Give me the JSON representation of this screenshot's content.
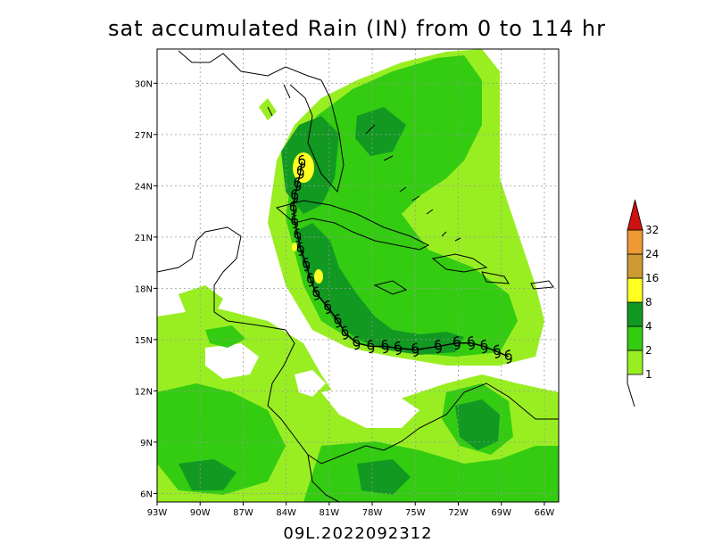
{
  "title": "sat accumulated Rain (IN) from 0 to 114 hr",
  "footer": "09L.2022092312",
  "map": {
    "lon_range": [
      -93,
      -65
    ],
    "lat_range": [
      5.5,
      32
    ],
    "lat_ticks": [
      {
        "value": 30,
        "label": "30N"
      },
      {
        "value": 27,
        "label": "27N"
      },
      {
        "value": 24,
        "label": "24N"
      },
      {
        "value": 21,
        "label": "21N"
      },
      {
        "value": 18,
        "label": "18N"
      },
      {
        "value": 15,
        "label": "15N"
      },
      {
        "value": 12,
        "label": "12N"
      },
      {
        "value": 9,
        "label": "9N"
      },
      {
        "value": 6,
        "label": "6N"
      }
    ],
    "lon_ticks": [
      {
        "value": -93,
        "label": "93W"
      },
      {
        "value": -90,
        "label": "90W"
      },
      {
        "value": -87,
        "label": "87W"
      },
      {
        "value": -84,
        "label": "84W"
      },
      {
        "value": -81,
        "label": "81W"
      },
      {
        "value": -78,
        "label": "78W"
      },
      {
        "value": -75,
        "label": "75W"
      },
      {
        "value": -72,
        "label": "72W"
      },
      {
        "value": -69,
        "label": "69W"
      },
      {
        "value": -66,
        "label": "66W"
      }
    ],
    "track": [
      {
        "lon": -68.5,
        "lat": 14.0
      },
      {
        "lon": -69.3,
        "lat": 14.3
      },
      {
        "lon": -70.2,
        "lat": 14.6
      },
      {
        "lon": -71.1,
        "lat": 14.8
      },
      {
        "lon": -72.1,
        "lat": 14.8
      },
      {
        "lon": -73.4,
        "lat": 14.6
      },
      {
        "lon": -75.0,
        "lat": 14.4
      },
      {
        "lon": -76.2,
        "lat": 14.5
      },
      {
        "lon": -77.1,
        "lat": 14.6
      },
      {
        "lon": -78.1,
        "lat": 14.6
      },
      {
        "lon": -79.1,
        "lat": 14.8
      },
      {
        "lon": -79.9,
        "lat": 15.4
      },
      {
        "lon": -80.4,
        "lat": 16.1
      },
      {
        "lon": -81.1,
        "lat": 16.9
      },
      {
        "lon": -81.9,
        "lat": 17.7
      },
      {
        "lon": -82.3,
        "lat": 18.5
      },
      {
        "lon": -82.6,
        "lat": 19.4
      },
      {
        "lon": -83.0,
        "lat": 20.3
      },
      {
        "lon": -83.2,
        "lat": 21.1
      },
      {
        "lon": -83.4,
        "lat": 21.9
      },
      {
        "lon": -83.5,
        "lat": 22.7
      },
      {
        "lon": -83.4,
        "lat": 23.4
      },
      {
        "lon": -83.2,
        "lat": 24.1
      },
      {
        "lon": -83.0,
        "lat": 24.8
      },
      {
        "lon": -82.9,
        "lat": 25.4
      }
    ]
  },
  "colorbar": {
    "levels": [
      {
        "label": "1",
        "color": "#99ee22"
      },
      {
        "label": "2",
        "color": "#33cc11"
      },
      {
        "label": "4",
        "color": "#119922"
      },
      {
        "label": "8",
        "color": "#ffff22"
      },
      {
        "label": "16",
        "color": "#cc9933"
      },
      {
        "label": "24",
        "color": "#ee9933"
      },
      {
        "label": "32",
        "color": "#cc1111"
      }
    ]
  }
}
